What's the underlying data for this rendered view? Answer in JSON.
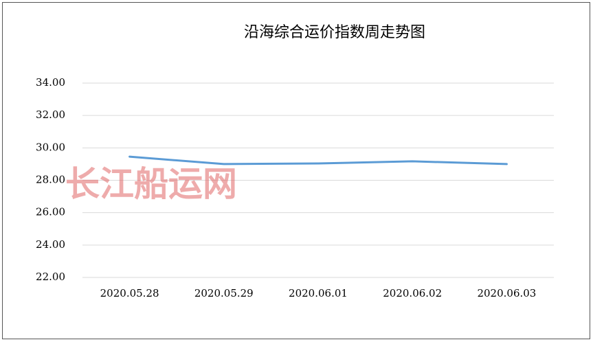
{
  "chart_data": {
    "type": "line",
    "title": "沿海综合运价指数周走势图",
    "watermark": "长江船运网",
    "categories": [
      "2020.05.28",
      "2020.05.29",
      "2020.06.01",
      "2020.06.02",
      "2020.06.03"
    ],
    "values": [
      29.46,
      29.0,
      29.04,
      29.17,
      29.0
    ],
    "color": "#5b9bd5",
    "ylim": [
      22,
      34
    ],
    "yticks": [
      {
        "value": 22,
        "label": "22.00"
      },
      {
        "value": 24,
        "label": "24.00"
      },
      {
        "value": 26,
        "label": "26.00"
      },
      {
        "value": 28,
        "label": "28.00"
      },
      {
        "value": 30,
        "label": "30.00"
      },
      {
        "value": 32,
        "label": "32.00"
      },
      {
        "value": 34,
        "label": "34.00"
      }
    ],
    "grid": true
  }
}
